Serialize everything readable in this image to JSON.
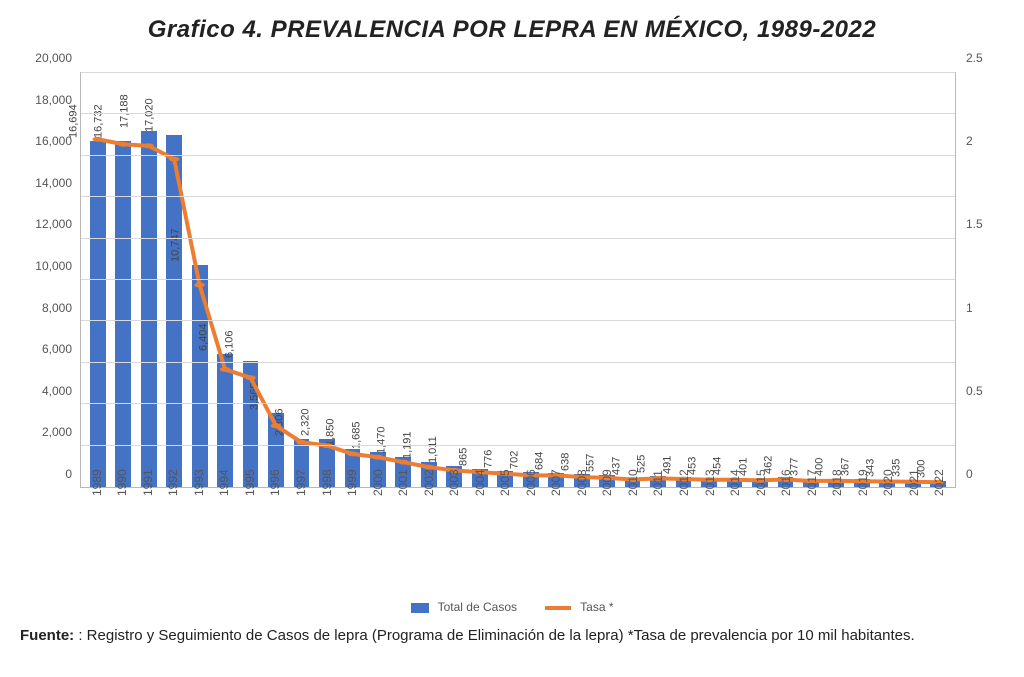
{
  "title": "Grafico 4. PREVALENCIA POR LEPRA EN MÉXICO, 1989-2022",
  "chart": {
    "type": "bar+line",
    "background_color": "#ffffff",
    "grid_color": "#d9d9d9",
    "axis_border_color": "#b8b8b8",
    "bar_color": "#4472c4",
    "line_color": "#ed7d31",
    "line_width": 4,
    "marker_size": 3.5,
    "label_fontsize": 12,
    "bar_label_fontsize": 11,
    "bar_width_ratio": 0.62,
    "y_left": {
      "min": 0,
      "max": 20000,
      "step": 2000
    },
    "y_right": {
      "min": 0,
      "max": 2.5,
      "step": 0.5
    },
    "years": [
      "1989",
      "1990",
      "1991",
      "1992",
      "1993",
      "1994",
      "1995",
      "1996",
      "1997",
      "1998",
      "1999",
      "2000",
      "2001",
      "2002",
      "2003",
      "2004",
      "2005",
      "2006",
      "2007",
      "2008",
      "2009",
      "2010",
      "2011",
      "2012",
      "2013",
      "2014",
      "2015",
      "2016",
      "2017",
      "2018",
      "2019",
      "2020",
      "2021",
      "2022"
    ],
    "casos": [
      16694,
      16732,
      17188,
      17020,
      10747,
      6404,
      6106,
      3565,
      2306,
      2320,
      1850,
      1685,
      1470,
      1191,
      1011,
      865,
      776,
      702,
      684,
      638,
      557,
      437,
      525,
      491,
      453,
      454,
      401,
      462,
      377,
      400,
      367,
      343,
      335,
      300
    ],
    "casos_labels": [
      "16,694",
      "16,732",
      "17,188",
      "17,020",
      "10,747",
      "6,404",
      "6,106",
      "3,565",
      "2,306",
      "2,320",
      "1,850",
      "1,685",
      "1,470",
      "1,191",
      "1,011",
      "865",
      "776",
      "702",
      "684",
      "638",
      "557",
      "437",
      "525",
      "491",
      "453",
      "454",
      "401",
      "462",
      "377",
      "400",
      "367",
      "343",
      "335",
      "300"
    ],
    "tasa": [
      2.1,
      2.07,
      2.06,
      1.98,
      1.22,
      0.71,
      0.66,
      0.37,
      0.27,
      0.25,
      0.2,
      0.18,
      0.15,
      0.12,
      0.1,
      0.09,
      0.08,
      0.07,
      0.07,
      0.06,
      0.055,
      0.045,
      0.052,
      0.048,
      0.044,
      0.044,
      0.04,
      0.045,
      0.036,
      0.038,
      0.035,
      0.033,
      0.032,
      0.029
    ]
  },
  "y_left_labels": [
    "0",
    "2,000",
    "4,000",
    "6,000",
    "8,000",
    "10,000",
    "12,000",
    "14,000",
    "16,000",
    "18,000",
    "20,000"
  ],
  "y_right_labels": [
    "0",
    "0.5",
    "1",
    "1.5",
    "2",
    "2.5"
  ],
  "legend": {
    "bar_label": "Total de Casos",
    "line_label": "Tasa *"
  },
  "source_bold": "Fuente:",
  "source_text": " : Registro y Seguimiento de Casos de lepra (Programa de Eliminación de la lepra) *Tasa de prevalencia por 10 mil habitantes."
}
